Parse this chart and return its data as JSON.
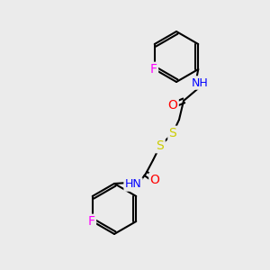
{
  "bg_color": "#ebebeb",
  "bond_color": "#000000",
  "bond_lw": 1.5,
  "atom_colors": {
    "N": "#0000ff",
    "O": "#ff0000",
    "S": "#cccc00",
    "F": "#ff00ff",
    "H": "#404040",
    "C": "#000000"
  },
  "font_size": 9,
  "figsize": [
    3.0,
    3.0
  ],
  "dpi": 100
}
